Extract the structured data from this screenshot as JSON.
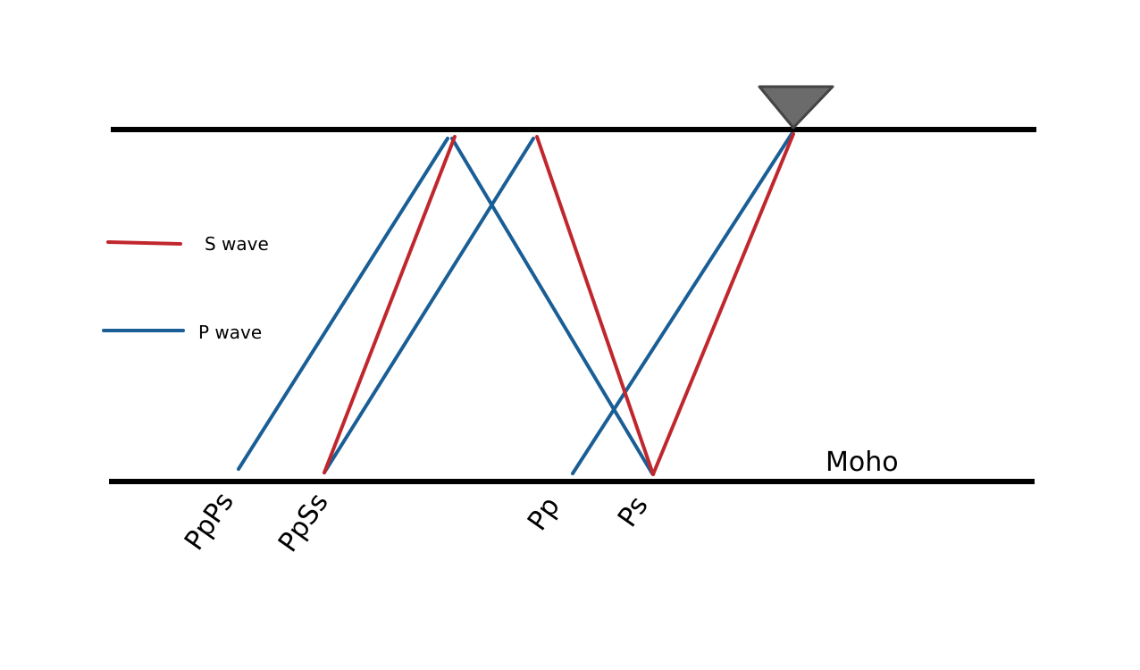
{
  "colors": {
    "s_wave": "#c0272d",
    "p_wave": "#1a5e96",
    "interface": "#000000",
    "station": "#6b6b6b"
  },
  "legend": {
    "s_wave_label": "S wave",
    "p_wave_label": "P wave"
  },
  "interfaces": {
    "moho_label": "Moho"
  },
  "station": {
    "icon": "triangle-station-icon"
  },
  "phases": [
    "PpPs",
    "PpSs",
    "Pp",
    "Ps"
  ]
}
